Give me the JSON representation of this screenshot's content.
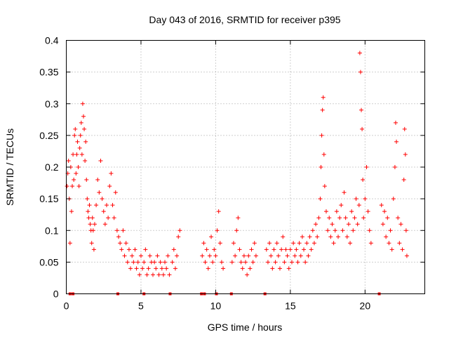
{
  "chart_data": {
    "type": "scatter",
    "title": "Day 043 of 2016, SRMTID for receiver p395",
    "xlabel": "GPS time / hours",
    "ylabel": "SRMTID / TECUs",
    "xlim": [
      0,
      24
    ],
    "ylim": [
      0,
      0.4
    ],
    "x_ticks": [
      0,
      5,
      10,
      15,
      20
    ],
    "x_tick_labels": [
      "0",
      "5",
      "10",
      "15",
      "20"
    ],
    "y_ticks": [
      0,
      0.05,
      0.1,
      0.15,
      0.2,
      0.25,
      0.3,
      0.35,
      0.4
    ],
    "y_tick_labels": [
      "0",
      "0.05",
      "0.1",
      "0.15",
      "0.2",
      "0.25",
      "0.3",
      "0.35",
      "0.4"
    ],
    "grid": true,
    "marker": "+",
    "marker_color": "#ff0000",
    "data_gap_markers_x": [
      0.25,
      0.45,
      3.45,
      5.2,
      6.95,
      9.05,
      9.25,
      10.05,
      11.05,
      13.3,
      20.95
    ],
    "series": [
      {
        "name": "SRMTID",
        "points": [
          [
            0.05,
            0.17
          ],
          [
            0.1,
            0.19
          ],
          [
            0.15,
            0.21
          ],
          [
            0.2,
            0.15
          ],
          [
            0.25,
            0.08
          ],
          [
            0.3,
            0.2
          ],
          [
            0.35,
            0.13
          ],
          [
            0.4,
            0.17
          ],
          [
            0.45,
            0.22
          ],
          [
            0.5,
            0.18
          ],
          [
            0.55,
            0.25
          ],
          [
            0.6,
            0.26
          ],
          [
            0.65,
            0.19
          ],
          [
            0.7,
            0.22
          ],
          [
            0.75,
            0.24
          ],
          [
            0.8,
            0.2
          ],
          [
            0.85,
            0.17
          ],
          [
            0.9,
            0.23
          ],
          [
            0.95,
            0.25
          ],
          [
            1.0,
            0.27
          ],
          [
            1.05,
            0.22
          ],
          [
            1.1,
            0.3
          ],
          [
            1.15,
            0.28
          ],
          [
            1.2,
            0.26
          ],
          [
            1.25,
            0.21
          ],
          [
            1.3,
            0.24
          ],
          [
            1.35,
            0.18
          ],
          [
            1.4,
            0.15
          ],
          [
            1.45,
            0.13
          ],
          [
            1.5,
            0.12
          ],
          [
            1.55,
            0.14
          ],
          [
            1.6,
            0.11
          ],
          [
            1.65,
            0.1
          ],
          [
            1.7,
            0.08
          ],
          [
            1.75,
            0.12
          ],
          [
            1.8,
            0.1
          ],
          [
            1.85,
            0.07
          ],
          [
            1.9,
            0.11
          ],
          [
            2.0,
            0.14
          ],
          [
            2.1,
            0.18
          ],
          [
            2.2,
            0.16
          ],
          [
            2.3,
            0.21
          ],
          [
            2.4,
            0.15
          ],
          [
            2.5,
            0.13
          ],
          [
            2.6,
            0.11
          ],
          [
            2.7,
            0.14
          ],
          [
            2.8,
            0.12
          ],
          [
            2.9,
            0.17
          ],
          [
            3.0,
            0.19
          ],
          [
            3.1,
            0.14
          ],
          [
            3.2,
            0.12
          ],
          [
            3.3,
            0.16
          ],
          [
            3.4,
            0.1
          ],
          [
            3.5,
            0.09
          ],
          [
            3.6,
            0.08
          ],
          [
            3.7,
            0.07
          ],
          [
            3.8,
            0.1
          ],
          [
            3.9,
            0.06
          ],
          [
            4.0,
            0.08
          ],
          [
            4.1,
            0.05
          ],
          [
            4.2,
            0.07
          ],
          [
            4.3,
            0.04
          ],
          [
            4.4,
            0.06
          ],
          [
            4.5,
            0.05
          ],
          [
            4.6,
            0.07
          ],
          [
            4.7,
            0.04
          ],
          [
            4.8,
            0.05
          ],
          [
            4.9,
            0.03
          ],
          [
            5.0,
            0.06
          ],
          [
            5.1,
            0.04
          ],
          [
            5.2,
            0.05
          ],
          [
            5.3,
            0.07
          ],
          [
            5.4,
            0.03
          ],
          [
            5.5,
            0.04
          ],
          [
            5.6,
            0.06
          ],
          [
            5.7,
            0.05
          ],
          [
            5.8,
            0.03
          ],
          [
            5.9,
            0.05
          ],
          [
            6.0,
            0.04
          ],
          [
            6.1,
            0.06
          ],
          [
            6.2,
            0.03
          ],
          [
            6.3,
            0.05
          ],
          [
            6.4,
            0.04
          ],
          [
            6.5,
            0.03
          ],
          [
            6.6,
            0.05
          ],
          [
            6.7,
            0.04
          ],
          [
            6.8,
            0.06
          ],
          [
            6.9,
            0.03
          ],
          [
            7.1,
            0.05
          ],
          [
            7.2,
            0.07
          ],
          [
            7.3,
            0.04
          ],
          [
            7.4,
            0.06
          ],
          [
            7.5,
            0.09
          ],
          [
            7.6,
            0.1
          ],
          [
            9.1,
            0.06
          ],
          [
            9.2,
            0.08
          ],
          [
            9.3,
            0.05
          ],
          [
            9.4,
            0.07
          ],
          [
            9.5,
            0.04
          ],
          [
            9.6,
            0.06
          ],
          [
            9.7,
            0.09
          ],
          [
            9.8,
            0.05
          ],
          [
            9.9,
            0.07
          ],
          [
            10.0,
            0.06
          ],
          [
            10.1,
            0.1
          ],
          [
            10.2,
            0.13
          ],
          [
            10.3,
            0.08
          ],
          [
            10.4,
            0.05
          ],
          [
            10.5,
            0.04
          ],
          [
            11.1,
            0.05
          ],
          [
            11.2,
            0.08
          ],
          [
            11.3,
            0.06
          ],
          [
            11.4,
            0.1
          ],
          [
            11.5,
            0.12
          ],
          [
            11.6,
            0.07
          ],
          [
            11.7,
            0.05
          ],
          [
            11.8,
            0.04
          ],
          [
            11.9,
            0.06
          ],
          [
            12.0,
            0.05
          ],
          [
            12.1,
            0.03
          ],
          [
            12.2,
            0.06
          ],
          [
            12.3,
            0.04
          ],
          [
            12.4,
            0.07
          ],
          [
            12.5,
            0.05
          ],
          [
            12.6,
            0.08
          ],
          [
            12.7,
            0.06
          ],
          [
            13.4,
            0.07
          ],
          [
            13.5,
            0.05
          ],
          [
            13.6,
            0.08
          ],
          [
            13.7,
            0.06
          ],
          [
            13.8,
            0.04
          ],
          [
            13.9,
            0.07
          ],
          [
            14.0,
            0.05
          ],
          [
            14.1,
            0.08
          ],
          [
            14.2,
            0.06
          ],
          [
            14.3,
            0.04
          ],
          [
            14.4,
            0.07
          ],
          [
            14.5,
            0.09
          ],
          [
            14.6,
            0.05
          ],
          [
            14.7,
            0.07
          ],
          [
            14.8,
            0.06
          ],
          [
            14.9,
            0.04
          ],
          [
            15.0,
            0.07
          ],
          [
            15.1,
            0.05
          ],
          [
            15.2,
            0.08
          ],
          [
            15.3,
            0.06
          ],
          [
            15.4,
            0.07
          ],
          [
            15.5,
            0.05
          ],
          [
            15.6,
            0.08
          ],
          [
            15.7,
            0.06
          ],
          [
            15.8,
            0.09
          ],
          [
            15.9,
            0.07
          ],
          [
            16.0,
            0.05
          ],
          [
            16.1,
            0.08
          ],
          [
            16.2,
            0.06
          ],
          [
            16.3,
            0.09
          ],
          [
            16.4,
            0.07
          ],
          [
            16.5,
            0.1
          ],
          [
            16.6,
            0.08
          ],
          [
            16.7,
            0.11
          ],
          [
            16.8,
            0.09
          ],
          [
            16.9,
            0.12
          ],
          [
            17.0,
            0.15
          ],
          [
            17.05,
            0.2
          ],
          [
            17.1,
            0.25
          ],
          [
            17.15,
            0.29
          ],
          [
            17.2,
            0.31
          ],
          [
            17.25,
            0.22
          ],
          [
            17.3,
            0.17
          ],
          [
            17.4,
            0.13
          ],
          [
            17.5,
            0.1
          ],
          [
            17.6,
            0.12
          ],
          [
            17.7,
            0.09
          ],
          [
            17.8,
            0.11
          ],
          [
            17.9,
            0.08
          ],
          [
            18.0,
            0.1
          ],
          [
            18.1,
            0.13
          ],
          [
            18.2,
            0.09
          ],
          [
            18.3,
            0.12
          ],
          [
            18.4,
            0.14
          ],
          [
            18.5,
            0.1
          ],
          [
            18.6,
            0.16
          ],
          [
            18.7,
            0.12
          ],
          [
            18.8,
            0.09
          ],
          [
            18.9,
            0.11
          ],
          [
            19.0,
            0.08
          ],
          [
            19.1,
            0.13
          ],
          [
            19.2,
            0.1
          ],
          [
            19.3,
            0.12
          ],
          [
            19.4,
            0.15
          ],
          [
            19.5,
            0.11
          ],
          [
            19.6,
            0.14
          ],
          [
            19.65,
            0.38
          ],
          [
            19.7,
            0.35
          ],
          [
            19.75,
            0.29
          ],
          [
            19.8,
            0.26
          ],
          [
            19.85,
            0.18
          ],
          [
            19.9,
            0.12
          ],
          [
            20.0,
            0.15
          ],
          [
            20.1,
            0.2
          ],
          [
            20.2,
            0.13
          ],
          [
            20.3,
            0.1
          ],
          [
            20.4,
            0.08
          ],
          [
            21.1,
            0.14
          ],
          [
            21.2,
            0.11
          ],
          [
            21.3,
            0.13
          ],
          [
            21.4,
            0.09
          ],
          [
            21.5,
            0.12
          ],
          [
            21.6,
            0.08
          ],
          [
            21.7,
            0.1
          ],
          [
            21.8,
            0.07
          ],
          [
            21.9,
            0.15
          ],
          [
            22.0,
            0.2
          ],
          [
            22.05,
            0.27
          ],
          [
            22.1,
            0.24
          ],
          [
            22.2,
            0.12
          ],
          [
            22.3,
            0.08
          ],
          [
            22.4,
            0.11
          ],
          [
            22.5,
            0.07
          ],
          [
            22.6,
            0.18
          ],
          [
            22.65,
            0.26
          ],
          [
            22.7,
            0.22
          ],
          [
            22.75,
            0.1
          ],
          [
            22.8,
            0.06
          ]
        ]
      }
    ]
  }
}
